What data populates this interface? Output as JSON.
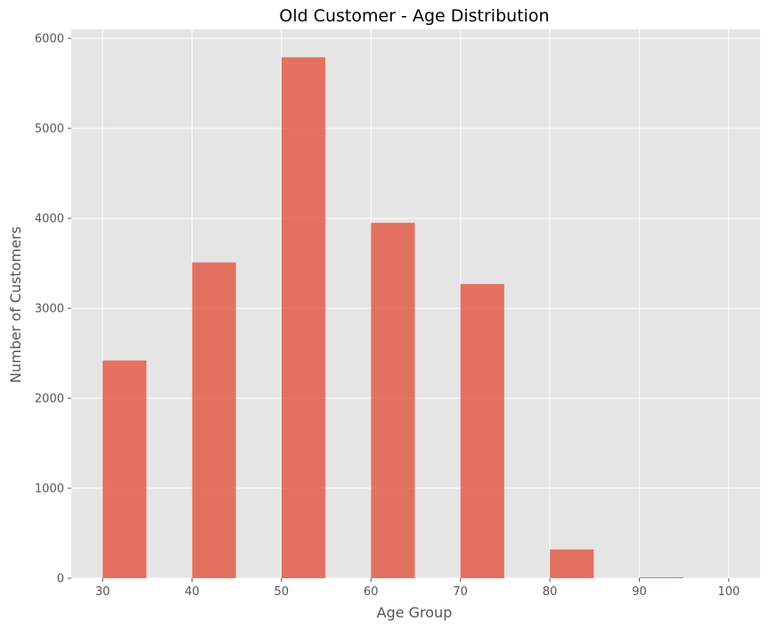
{
  "chart_data": {
    "type": "bar",
    "title": "Old Customer - Age Distribution",
    "xlabel": "Age Group",
    "ylabel": "Number of Customers",
    "xlim": [
      26.5,
      103.5
    ],
    "ylim": [
      0,
      6100
    ],
    "xticks": [
      30,
      40,
      50,
      60,
      70,
      80,
      90,
      100
    ],
    "yticks": [
      0,
      1000,
      2000,
      3000,
      4000,
      5000,
      6000
    ],
    "bins": [
      {
        "start": 30.0,
        "end": 34.9,
        "value": 2420
      },
      {
        "start": 40.0,
        "end": 44.9,
        "value": 3510
      },
      {
        "start": 50.0,
        "end": 54.9,
        "value": 5790
      },
      {
        "start": 60.0,
        "end": 64.9,
        "value": 3950
      },
      {
        "start": 70.0,
        "end": 74.9,
        "value": 3270
      },
      {
        "start": 80.0,
        "end": 84.9,
        "value": 320
      },
      {
        "start": 90.0,
        "end": 94.9,
        "value": 10
      }
    ],
    "grid": true,
    "colors": {
      "bar": "#e24a33",
      "background": "#e5e5e5",
      "grid": "#ffffff"
    }
  }
}
